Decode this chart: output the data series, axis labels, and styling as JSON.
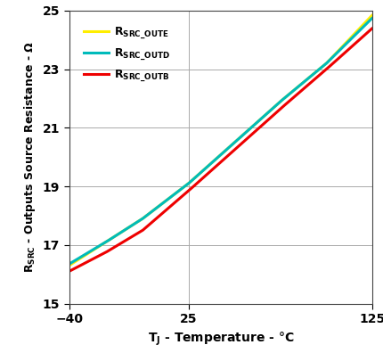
{
  "xlim": [
    -40,
    125
  ],
  "ylim": [
    15,
    25
  ],
  "xticks": [
    -40,
    25,
    125
  ],
  "yticks": [
    15,
    17,
    19,
    21,
    23,
    25
  ],
  "series": [
    {
      "label": "R_SRC_OUTE",
      "color": "#FFEE00",
      "x": [
        -40,
        -20,
        0,
        25,
        50,
        75,
        100,
        125
      ],
      "y": [
        16.3,
        17.1,
        17.9,
        19.1,
        20.5,
        21.9,
        23.2,
        24.85
      ]
    },
    {
      "label": "R_SRC_OUTD",
      "color": "#00BBBB",
      "x": [
        -40,
        -20,
        0,
        25,
        50,
        75,
        100,
        125
      ],
      "y": [
        16.35,
        17.1,
        17.9,
        19.1,
        20.5,
        21.9,
        23.2,
        24.75
      ]
    },
    {
      "label": "R_SRC_OUTB",
      "color": "#EE0000",
      "x": [
        -40,
        -20,
        0,
        25,
        50,
        75,
        100,
        125
      ],
      "y": [
        16.1,
        16.75,
        17.5,
        18.85,
        20.25,
        21.65,
        23.0,
        24.4
      ]
    }
  ],
  "grid_color": "#AAAAAA",
  "bg_color": "#FFFFFF",
  "legend_labels": [
    "R_SRC_OUTE",
    "R_SRC_OUTD",
    "R_SRC_OUTB"
  ],
  "legend_colors": [
    "#FFEE00",
    "#00BBBB",
    "#EE0000"
  ]
}
